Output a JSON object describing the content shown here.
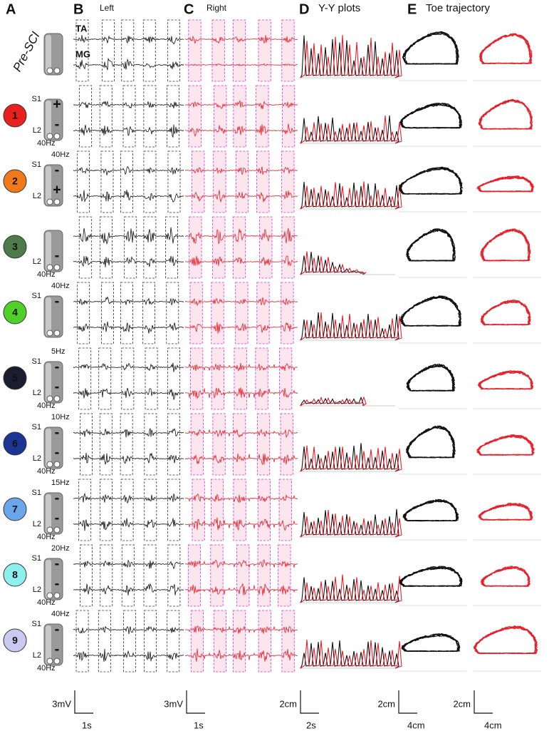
{
  "headers": [
    {
      "letter": "A"
    },
    {
      "letter": "B",
      "title": "Left"
    },
    {
      "letter": "C",
      "title": "Right"
    },
    {
      "letter": "D",
      "title": "Y-Y plots"
    },
    {
      "letter": "E",
      "title": "Toe trajectory"
    }
  ],
  "muscles": [
    "TA",
    "MG"
  ],
  "rows": [
    {
      "label": "Pre-SCI"
    },
    {
      "number": "1",
      "color": "#e8211f",
      "s1": "S1",
      "s1_sign": "+",
      "l2": "L2",
      "l2_sign": "-",
      "bottom_freq": "40Hz"
    },
    {
      "number": "2",
      "color": "#f07a1a",
      "top_freq": "40Hz",
      "s1": "S1",
      "s1_sign": "-",
      "l2": "L2",
      "l2_sign": "+"
    },
    {
      "number": "3",
      "color": "#4f7a4a",
      "l2": "L2",
      "l2_sign": "-",
      "bottom_freq": "40Hz"
    },
    {
      "number": "4",
      "color": "#4fd12a",
      "top_freq": "40Hz",
      "s1": "S1",
      "s1_sign": "-"
    },
    {
      "number": "5",
      "color": "#1b1d2e",
      "top_freq": "5Hz",
      "s1": "S1",
      "s1_sign": "-",
      "l2": "L2",
      "l2_sign": "-",
      "bottom_freq": "40Hz"
    },
    {
      "number": "6",
      "color": "#1b3595",
      "top_freq": "10Hz",
      "s1": "S1",
      "s1_sign": "-",
      "l2": "L2",
      "l2_sign": "-",
      "bottom_freq": "40Hz"
    },
    {
      "number": "7",
      "color": "#6aa7ea",
      "top_freq": "15Hz",
      "s1": "S1",
      "s1_sign": "-",
      "l2": "L2",
      "l2_sign": "-",
      "bottom_freq": "40Hz"
    },
    {
      "number": "8",
      "color": "#8ef0ee",
      "top_freq": "20Hz",
      "s1": "S1",
      "s1_sign": "-",
      "l2": "L2",
      "l2_sign": "-",
      "bottom_freq": "40Hz"
    },
    {
      "number": "9",
      "color": "#c9c9f2",
      "top_freq": "40Hz",
      "s1": "S1",
      "s1_sign": "-",
      "l2": "L2",
      "l2_sign": "-",
      "bottom_freq": "40Hz"
    }
  ],
  "scale_bars": [
    {
      "y": "3mV",
      "x": "1s"
    },
    {
      "y": "3mV",
      "x": "1s"
    },
    {
      "y": "2cm",
      "x": "2s"
    },
    {
      "y": "2cm",
      "x": "4cm"
    },
    {
      "y": "2cm",
      "x": "4cm"
    }
  ]
}
